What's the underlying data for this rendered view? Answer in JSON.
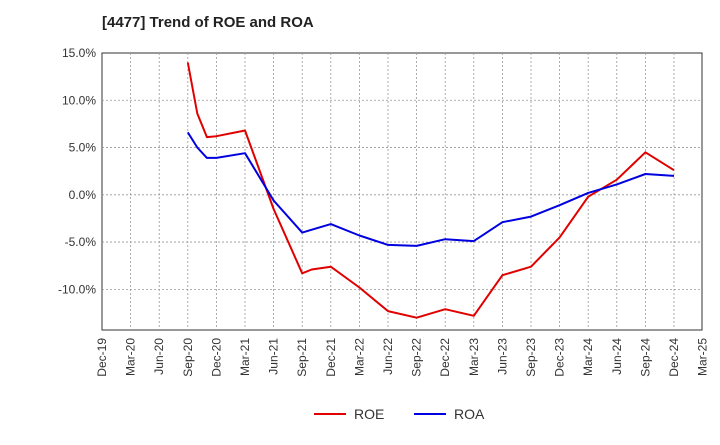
{
  "chart_data": {
    "type": "line",
    "title": "[4477]  Trend of ROE and ROA",
    "xlabel": "",
    "ylabel": "",
    "x_ticks": [
      "Dec-19",
      "Mar-20",
      "Jun-20",
      "Sep-20",
      "Dec-20",
      "Mar-21",
      "Jun-21",
      "Sep-21",
      "Dec-21",
      "Mar-22",
      "Jun-22",
      "Sep-22",
      "Dec-22",
      "Mar-23",
      "Jun-23",
      "Sep-23",
      "Dec-23",
      "Mar-24",
      "Jun-24",
      "Sep-24",
      "Dec-24",
      "Mar-25"
    ],
    "y_ticks": [
      {
        "value": 15,
        "label": "15.0%"
      },
      {
        "value": 10,
        "label": "10.0%"
      },
      {
        "value": 5,
        "label": "5.0%"
      },
      {
        "value": 0,
        "label": "0.0%"
      },
      {
        "value": -5,
        "label": "-5.0%"
      },
      {
        "value": -10,
        "label": "-10.0%"
      }
    ],
    "ylim": [
      -14.3,
      15.0
    ],
    "grid": true,
    "legend_position": "bottom-center",
    "series": [
      {
        "name": "ROE",
        "color": "#e00000",
        "x": [
          "Sep-20",
          "Oct-20",
          "Nov-20",
          "Dec-20",
          "Mar-21",
          "Jun-21",
          "Sep-21",
          "Oct-21",
          "Dec-21",
          "Mar-22",
          "Jun-22",
          "Sep-22",
          "Dec-22",
          "Mar-23",
          "Jun-23",
          "Sep-23",
          "Dec-23",
          "Mar-24",
          "Jun-24",
          "Sep-24",
          "Dec-24"
        ],
        "values": [
          14.0,
          8.6,
          6.1,
          6.2,
          6.8,
          -1.5,
          -8.3,
          -7.9,
          -7.6,
          -9.8,
          -12.3,
          -13.0,
          -12.1,
          -12.8,
          -8.5,
          -7.6,
          -4.5,
          -0.2,
          1.6,
          4.5,
          2.6
        ]
      },
      {
        "name": "ROA",
        "color": "#0000e0",
        "x": [
          "Sep-20",
          "Oct-20",
          "Nov-20",
          "Dec-20",
          "Mar-21",
          "Jun-21",
          "Sep-21",
          "Dec-21",
          "Mar-22",
          "Jun-22",
          "Sep-22",
          "Dec-22",
          "Mar-23",
          "Jun-23",
          "Sep-23",
          "Dec-23",
          "Mar-24",
          "Jun-24",
          "Sep-24",
          "Dec-24"
        ],
        "values": [
          6.6,
          5.0,
          3.9,
          3.9,
          4.4,
          -0.6,
          -4.0,
          -3.1,
          -4.3,
          -5.3,
          -5.4,
          -4.7,
          -4.9,
          -2.9,
          -2.3,
          -1.1,
          0.2,
          1.1,
          2.2,
          2.0
        ]
      }
    ]
  }
}
